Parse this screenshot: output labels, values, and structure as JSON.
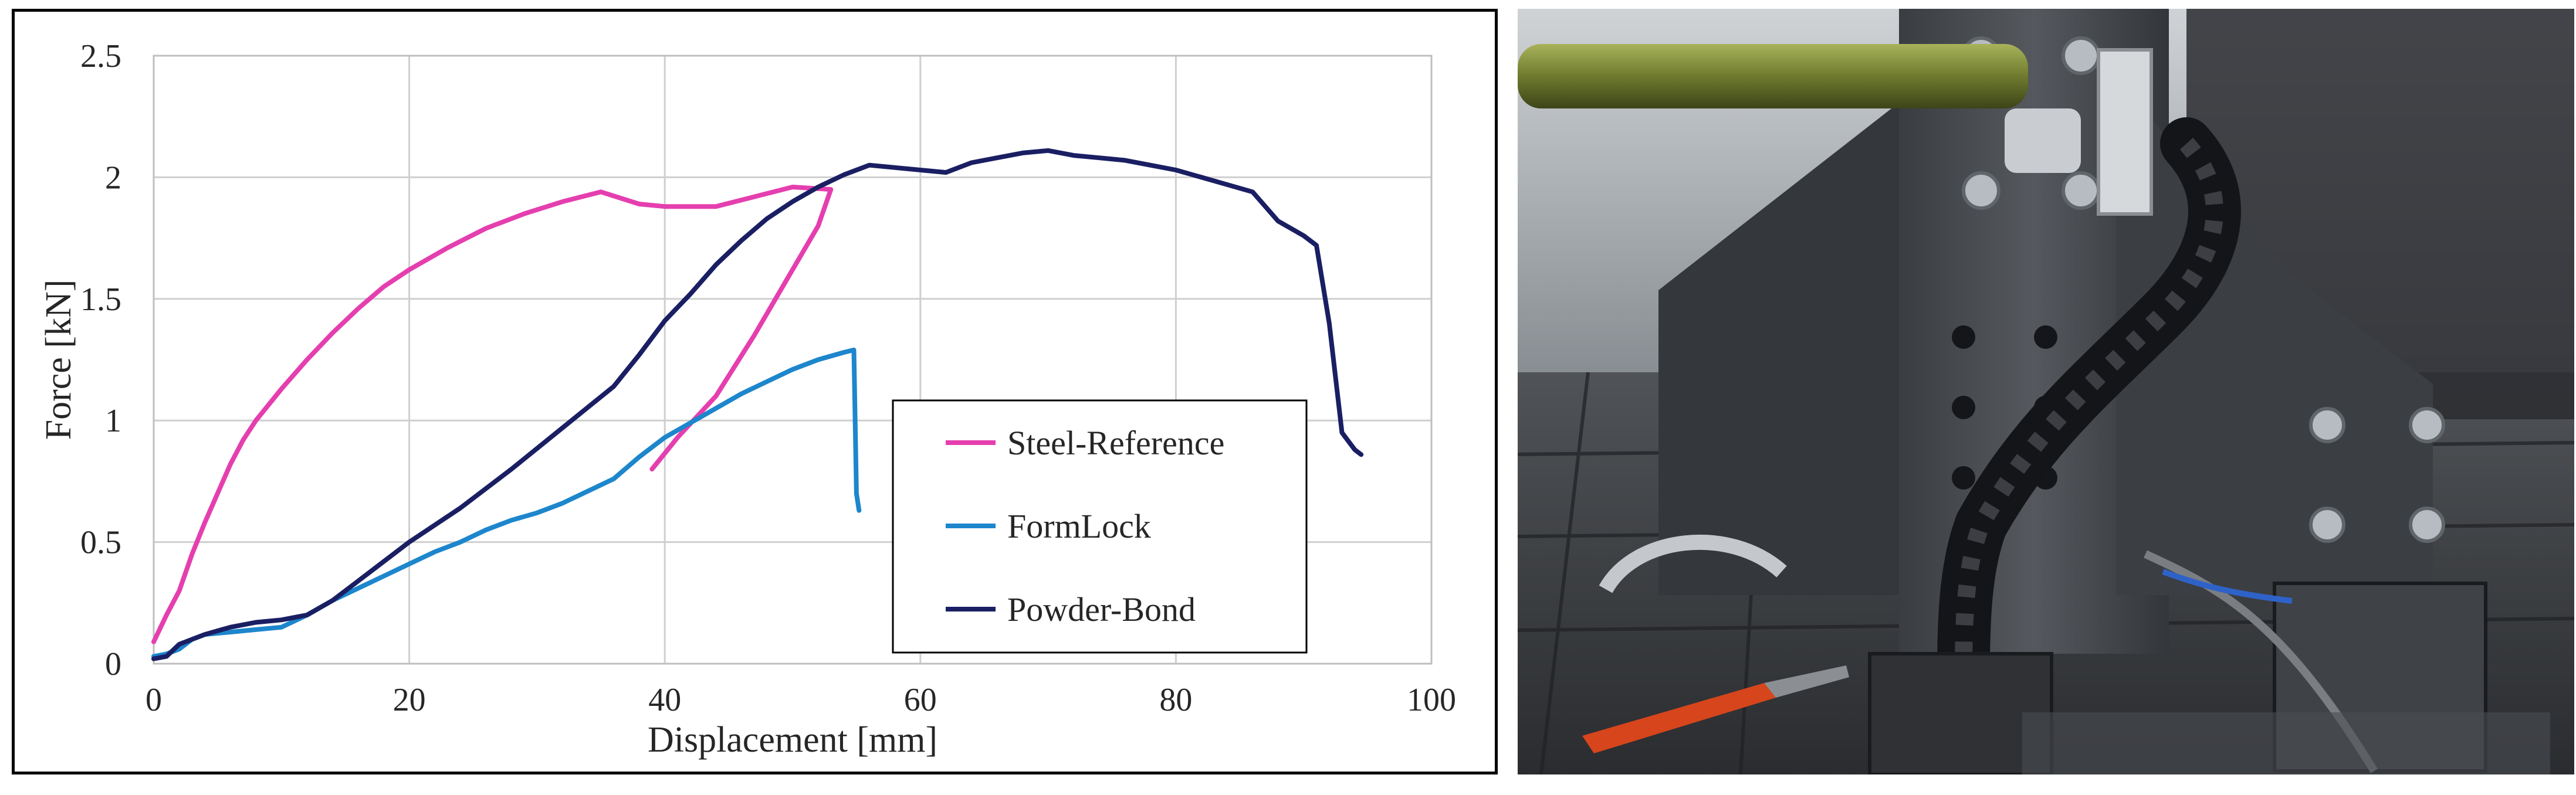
{
  "chart_data": {
    "type": "line",
    "title": "",
    "xlabel": "Displacement [mm]",
    "ylabel": "Force [kN]",
    "xlim": [
      0,
      100
    ],
    "ylim": [
      0,
      2.5
    ],
    "xticks": [
      0,
      20,
      40,
      60,
      80,
      100
    ],
    "yticks": [
      0,
      0.5,
      1,
      1.5,
      2,
      2.5
    ],
    "xtick_labels": [
      "0",
      "20",
      "40",
      "60",
      "80",
      "100"
    ],
    "ytick_labels": [
      "0",
      "0.5",
      "1",
      "1.5",
      "2",
      "2.5"
    ],
    "grid": true,
    "legend_position": "bottom-right",
    "series": [
      {
        "name": "Steel-Reference",
        "color": "#E53FAF",
        "points": [
          [
            0,
            0.09
          ],
          [
            1,
            0.2
          ],
          [
            2,
            0.3
          ],
          [
            3,
            0.45
          ],
          [
            4,
            0.58
          ],
          [
            5,
            0.7
          ],
          [
            6,
            0.82
          ],
          [
            7,
            0.92
          ],
          [
            8,
            1.0
          ],
          [
            10,
            1.13
          ],
          [
            12,
            1.25
          ],
          [
            14,
            1.36
          ],
          [
            16,
            1.46
          ],
          [
            18,
            1.55
          ],
          [
            20,
            1.62
          ],
          [
            23,
            1.71
          ],
          [
            26,
            1.79
          ],
          [
            29,
            1.85
          ],
          [
            32,
            1.9
          ],
          [
            35,
            1.94
          ],
          [
            38,
            1.89
          ],
          [
            40,
            1.88
          ],
          [
            44,
            1.88
          ],
          [
            47,
            1.92
          ],
          [
            50,
            1.96
          ],
          [
            53,
            1.95
          ],
          [
            52,
            1.8
          ],
          [
            50,
            1.62
          ],
          [
            47,
            1.35
          ],
          [
            44,
            1.1
          ],
          [
            41,
            0.93
          ],
          [
            39,
            0.8
          ]
        ]
      },
      {
        "name": "FormLock",
        "color": "#1D86CC",
        "points": [
          [
            0,
            0.03
          ],
          [
            1,
            0.04
          ],
          [
            2,
            0.06
          ],
          [
            3,
            0.1
          ],
          [
            4,
            0.12
          ],
          [
            6,
            0.13
          ],
          [
            8,
            0.14
          ],
          [
            10,
            0.15
          ],
          [
            12,
            0.2
          ],
          [
            14,
            0.26
          ],
          [
            16,
            0.31
          ],
          [
            18,
            0.36
          ],
          [
            20,
            0.41
          ],
          [
            22,
            0.46
          ],
          [
            24,
            0.5
          ],
          [
            26,
            0.55
          ],
          [
            28,
            0.59
          ],
          [
            30,
            0.62
          ],
          [
            32,
            0.66
          ],
          [
            34,
            0.71
          ],
          [
            36,
            0.76
          ],
          [
            38,
            0.85
          ],
          [
            40,
            0.93
          ],
          [
            42,
            0.99
          ],
          [
            44,
            1.05
          ],
          [
            46,
            1.11
          ],
          [
            48,
            1.16
          ],
          [
            50,
            1.21
          ],
          [
            52,
            1.25
          ],
          [
            54,
            1.28
          ],
          [
            54.8,
            1.29
          ],
          [
            55,
            0.7
          ],
          [
            55.2,
            0.63
          ]
        ]
      },
      {
        "name": "Powder-Bond",
        "color": "#1A1F63",
        "points": [
          [
            0,
            0.02
          ],
          [
            1,
            0.03
          ],
          [
            2,
            0.08
          ],
          [
            4,
            0.12
          ],
          [
            6,
            0.15
          ],
          [
            8,
            0.17
          ],
          [
            10,
            0.18
          ],
          [
            12,
            0.2
          ],
          [
            14,
            0.26
          ],
          [
            16,
            0.34
          ],
          [
            18,
            0.42
          ],
          [
            20,
            0.5
          ],
          [
            24,
            0.64
          ],
          [
            28,
            0.8
          ],
          [
            32,
            0.97
          ],
          [
            36,
            1.14
          ],
          [
            38,
            1.27
          ],
          [
            40,
            1.41
          ],
          [
            42,
            1.52
          ],
          [
            44,
            1.64
          ],
          [
            46,
            1.74
          ],
          [
            48,
            1.83
          ],
          [
            50,
            1.9
          ],
          [
            52,
            1.96
          ],
          [
            54,
            2.01
          ],
          [
            56,
            2.05
          ],
          [
            58,
            2.04
          ],
          [
            60,
            2.03
          ],
          [
            62,
            2.02
          ],
          [
            64,
            2.06
          ],
          [
            66,
            2.08
          ],
          [
            68,
            2.1
          ],
          [
            70,
            2.11
          ],
          [
            72,
            2.09
          ],
          [
            74,
            2.08
          ],
          [
            76,
            2.07
          ],
          [
            78,
            2.05
          ],
          [
            80,
            2.03
          ],
          [
            82,
            2.0
          ],
          [
            84,
            1.97
          ],
          [
            86,
            1.94
          ],
          [
            88,
            1.82
          ],
          [
            90,
            1.76
          ],
          [
            91,
            1.72
          ],
          [
            92,
            1.4
          ],
          [
            93,
            0.95
          ],
          [
            94,
            0.88
          ],
          [
            94.5,
            0.86
          ]
        ]
      }
    ]
  },
  "photo": {
    "description_icon": "test-rig-photo"
  }
}
